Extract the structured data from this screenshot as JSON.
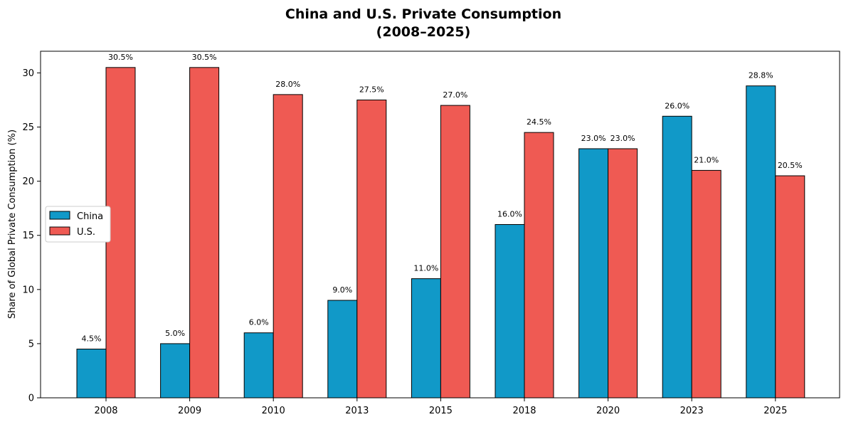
{
  "chart_data": {
    "type": "bar",
    "title_line1": "China and U.S. Private Consumption",
    "title_line2": "(2008–2025)",
    "xlabel": "",
    "ylabel": "Share of Global Private Consumption (%)",
    "ylim": [
      0,
      32
    ],
    "yticks": [
      0,
      5,
      10,
      15,
      20,
      25,
      30
    ],
    "categories": [
      "2008",
      "2009",
      "2010",
      "2013",
      "2015",
      "2018",
      "2020",
      "2023",
      "2025"
    ],
    "series": [
      {
        "name": "China",
        "color": "#1199c8",
        "values": [
          4.5,
          5.0,
          6.0,
          9.0,
          11.0,
          16.0,
          23.0,
          26.0,
          28.8
        ],
        "labels": [
          "4.5%",
          "5.0%",
          "6.0%",
          "9.0%",
          "11.0%",
          "16.0%",
          "23.0%",
          "26.0%",
          "28.8%"
        ]
      },
      {
        "name": "U.S.",
        "color": "#ef5a53",
        "values": [
          30.5,
          30.5,
          28.0,
          27.5,
          27.0,
          24.5,
          23.0,
          21.0,
          20.5
        ],
        "labels": [
          "30.5%",
          "30.5%",
          "28.0%",
          "27.5%",
          "27.0%",
          "24.5%",
          "23.0%",
          "21.0%",
          "20.5%"
        ]
      }
    ],
    "legend_position": "center-left",
    "grid": false
  }
}
